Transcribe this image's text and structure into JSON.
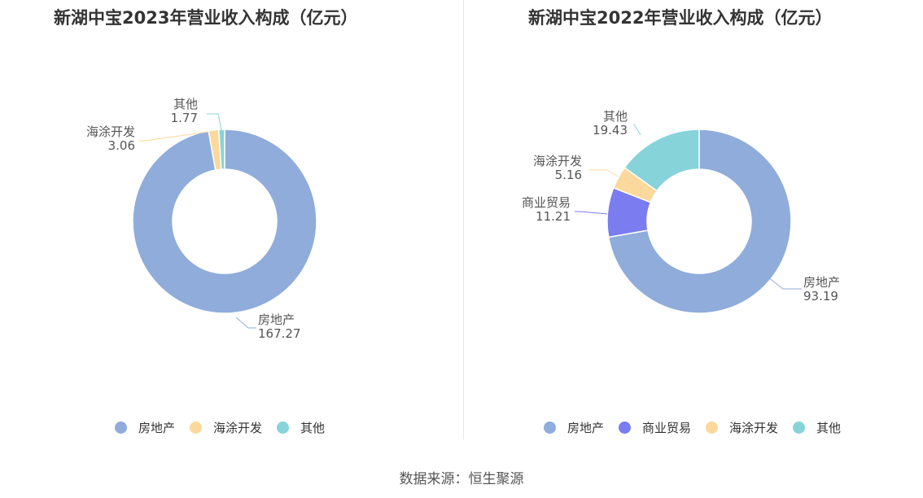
{
  "source_label": "数据来源：恒生聚源",
  "chart_data": [
    {
      "type": "pie",
      "title": "新湖中宝2023年营业收入构成（亿元）",
      "categories": [
        "房地产",
        "海涂开发",
        "其他"
      ],
      "values": [
        167.27,
        3.06,
        1.77
      ],
      "labels": [
        "167.27",
        "3.06",
        "1.77"
      ],
      "colors": [
        "#8facdb",
        "#fbd89b",
        "#86d4d9"
      ],
      "legend_position": "bottom"
    },
    {
      "type": "pie",
      "title": "新湖中宝2022年营业收入构成（亿元）",
      "categories": [
        "房地产",
        "商业贸易",
        "海涂开发",
        "其他"
      ],
      "values": [
        93.19,
        11.21,
        5.16,
        19.43
      ],
      "labels": [
        "93.19",
        "11.21",
        "5.16",
        "19.43"
      ],
      "colors": [
        "#8facdb",
        "#7b7cf0",
        "#fbd89b",
        "#86d4d9"
      ],
      "legend_position": "bottom"
    }
  ]
}
